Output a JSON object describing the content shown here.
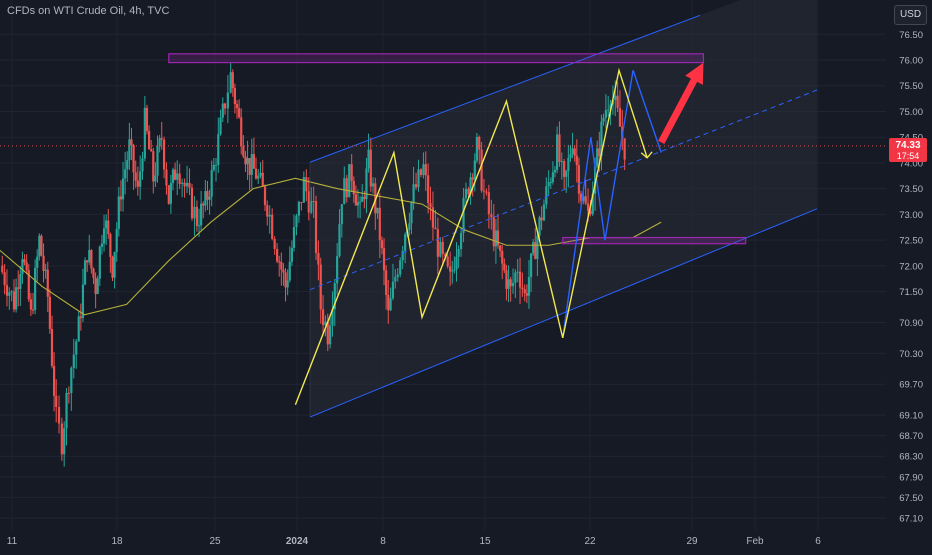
{
  "header": {
    "title": "CFDs on WTI Crude Oil, 4h, TVC",
    "currency": "USD"
  },
  "price_badge": {
    "price": "74.33",
    "countdown": "17:54"
  },
  "chart_data": {
    "type": "candlestick",
    "title": "CFDs on WTI Crude Oil, 4h, TVC",
    "y_ticks": [
      "76.50",
      "76.00",
      "75.50",
      "75.00",
      "74.50",
      "74.00",
      "73.50",
      "73.00",
      "72.50",
      "72.00",
      "71.50",
      "70.90",
      "70.30",
      "69.70",
      "69.10",
      "68.70",
      "68.30",
      "67.90",
      "67.50",
      "67.10"
    ],
    "x_ticks": [
      "11",
      "18",
      "25",
      "2024",
      "8",
      "15",
      "22",
      "29",
      "Feb",
      "6"
    ],
    "last_price": 74.33,
    "colors": {
      "up": "#26a69a",
      "down": "#ef5350",
      "channel": "#2962ff",
      "zigzag": "#f2e94e",
      "zigzag_blue": "#2962ff",
      "ma": "#b5b03a",
      "box": "#9c27b0",
      "arrow": "#ff3344"
    },
    "annotations": {
      "channel": {
        "base": [
          [
            "2023-12-29",
            68.72
          ],
          [
            "2024-02-06",
            73.1
          ]
        ],
        "top": [
          [
            "2023-12-29",
            73.7
          ],
          [
            "2024-01-31",
            77.1
          ]
        ],
        "mid_dashed": true
      },
      "resistance_zone": {
        "from": "2023-12-22",
        "to": "2024-01-29",
        "low": 75.95,
        "high": 76.12
      },
      "support_zone": {
        "from": "2024-01-19",
        "to": "2024-02-01",
        "low": 72.43,
        "high": 72.55
      },
      "zigzag_yellow": [
        [
          "2023-12-31",
          69.3
        ],
        [
          "2024-01-07",
          74.2
        ],
        [
          "2024-01-09",
          71.0
        ],
        [
          "2024-01-15",
          75.2
        ],
        [
          "2024-01-19",
          70.6
        ],
        [
          "2024-01-23",
          75.8
        ],
        [
          "2024-01-25",
          74.1
        ]
      ],
      "zigzag_blue": [
        [
          "2024-01-19",
          70.6
        ],
        [
          "2024-01-21",
          74.5
        ],
        [
          "2024-01-22",
          72.5
        ],
        [
          "2024-01-24",
          75.8
        ],
        [
          "2024-01-26",
          74.2
        ]
      ],
      "target_arrow": {
        "from": [
          "2024-01-26",
          74.4
        ],
        "to": [
          "2024-01-29",
          75.95
        ]
      }
    },
    "ma_series": [
      [
        "2023-12-04",
        74.0
      ],
      [
        "2023-12-07",
        73.2
      ],
      [
        "2023-12-10",
        72.3
      ],
      [
        "2023-12-13",
        71.6
      ],
      [
        "2023-12-16",
        71.05
      ],
      [
        "2023-12-19",
        71.25
      ],
      [
        "2023-12-22",
        72.1
      ],
      [
        "2023-12-25",
        72.85
      ],
      [
        "2023-12-28",
        73.5
      ],
      [
        "2023-12-31",
        73.7
      ],
      [
        "2024-01-03",
        73.5
      ],
      [
        "2024-01-06",
        73.35
      ],
      [
        "2024-01-09",
        73.2
      ],
      [
        "2024-01-12",
        72.7
      ],
      [
        "2024-01-15",
        72.4
      ],
      [
        "2024-01-18",
        72.4
      ],
      [
        "2024-01-21",
        72.55
      ],
      [
        "2024-01-24",
        72.55
      ],
      [
        "2024-01-26",
        72.85
      ]
    ],
    "candles_note": "approximate 4h OHLC reconstructed from visual",
    "candles": []
  }
}
